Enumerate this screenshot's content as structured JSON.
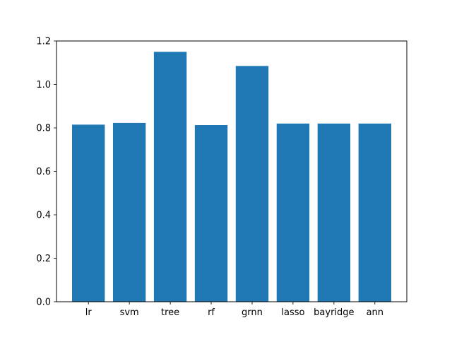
{
  "chart_data": {
    "type": "bar",
    "title": "",
    "xlabel": "",
    "ylabel": "",
    "categories": [
      "lr",
      "svm",
      "tree",
      "rf",
      "grnn",
      "lasso",
      "bayridge",
      "ann"
    ],
    "values": [
      0.815,
      0.823,
      1.15,
      0.813,
      1.085,
      0.82,
      0.82,
      0.82
    ],
    "ylim": [
      0,
      1.2
    ],
    "yticks": [
      "0.0",
      "0.2",
      "0.4",
      "0.6",
      "0.8",
      "1.0",
      "1.2"
    ],
    "grid": false,
    "legend": "none",
    "bar_color": "#1f77b4"
  }
}
